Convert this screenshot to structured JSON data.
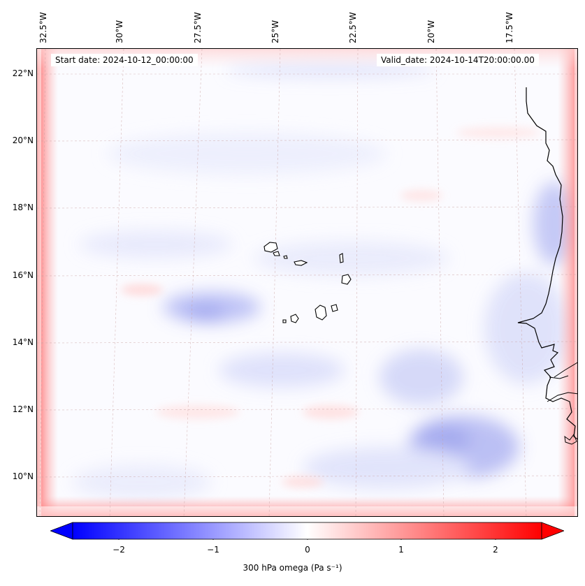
{
  "map": {
    "start_date": "Start date: 2024-10-12_00:00:00",
    "valid_date": "Valid_date: 2024-10-14T20:00:00.00",
    "lon_labels": [
      "32.5°W",
      "30°W",
      "27.5°W",
      "25°W",
      "22.5°W",
      "20°W",
      "17.5°W"
    ],
    "lat_labels": [
      "22°N",
      "20°N",
      "18°N",
      "16°N",
      "14°N",
      "12°N",
      "10°N"
    ],
    "colors": {
      "negative": "#0000ff",
      "neutral": "#ffffff",
      "positive": "#ff0000",
      "coast": "#000000"
    }
  },
  "colorbar": {
    "ticks": [
      "−2",
      "−1",
      "0",
      "1",
      "2"
    ],
    "min": -2.7,
    "max": 2.7,
    "label": "300 hPa omega (Pa s⁻¹)"
  }
}
